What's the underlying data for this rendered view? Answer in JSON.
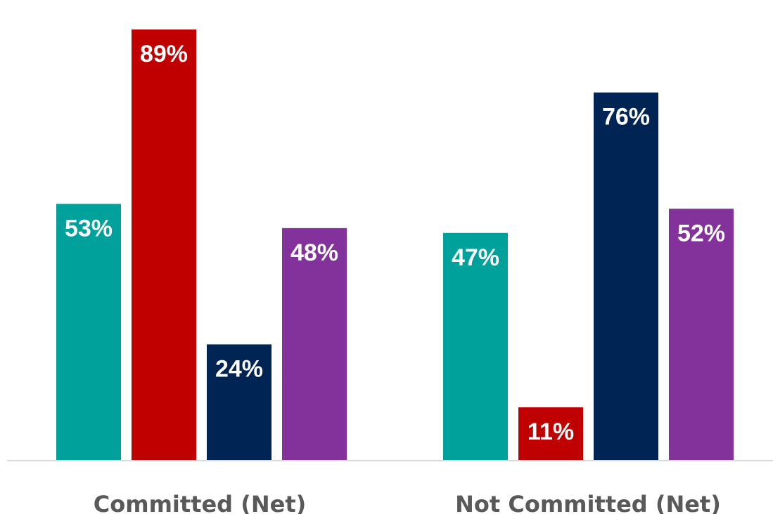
{
  "chart_data": {
    "type": "bar",
    "categories": [
      "Committed (Net)",
      "Not Committed (Net)"
    ],
    "series": [
      {
        "values": [
          53,
          47
        ],
        "color": "#00a09b"
      },
      {
        "values": [
          89,
          11
        ],
        "color": "#c00000"
      },
      {
        "values": [
          24,
          76
        ],
        "color": "#002554"
      },
      {
        "values": [
          48,
          52
        ],
        "color": "#84329b"
      }
    ],
    "value_labels": [
      [
        "53%",
        "47%"
      ],
      [
        "89%",
        "11%"
      ],
      [
        "24%",
        "76%"
      ],
      [
        "48%",
        "52%"
      ]
    ],
    "ylim": [
      0,
      100
    ],
    "grid": false,
    "legend": "none",
    "baseline_color": "#d9d9d9",
    "label_text_color": "#ffffff",
    "category_text_color": "#595959"
  }
}
